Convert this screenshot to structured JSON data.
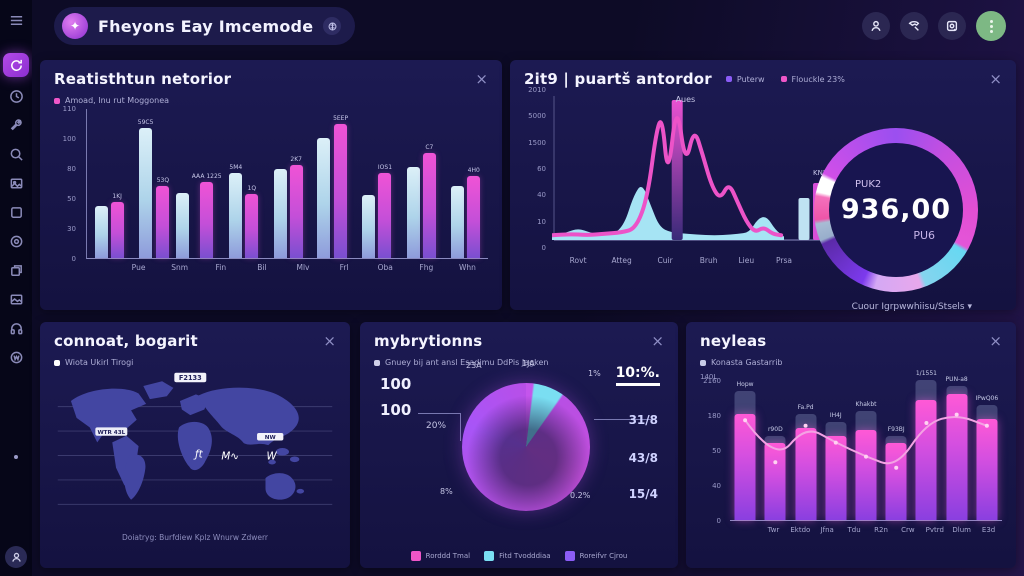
{
  "header": {
    "title": "Fheyons Eay Imcemode"
  },
  "panels": {
    "bars": {
      "title": "Reatisthtun netorior",
      "close": "×",
      "legend": [
        {
          "label": "Amoad, Inu rut Moggonea",
          "color": "#ef56c8"
        }
      ],
      "chart": {
        "type": "bar",
        "y_max": 110,
        "y_ticks": [
          "110",
          "100",
          "80",
          "50",
          "30",
          "0"
        ],
        "groups": [
          {
            "cat": "Pue",
            "cyan": 38,
            "pink": 41,
            "cyan_label": "",
            "pink_label": "1KJ"
          },
          {
            "cat": "Snm",
            "cyan": 95,
            "pink": 53,
            "cyan_label": "59C5",
            "pink_label": "53Q"
          },
          {
            "cat": "Fin",
            "cyan": 48,
            "pink": 56,
            "cyan_label": "",
            "pink_label": "AAA 1225"
          },
          {
            "cat": "Bil",
            "cyan": 62,
            "pink": 47,
            "cyan_label": "5M4",
            "pink_label": "1Q"
          },
          {
            "cat": "Mlv",
            "cyan": 65,
            "pink": 68,
            "cyan_label": "",
            "pink_label": "2K7"
          },
          {
            "cat": "Frl",
            "cyan": 88,
            "pink": 98,
            "cyan_label": "",
            "pink_label": "5EEP"
          },
          {
            "cat": "Oba",
            "cyan": 46,
            "pink": 62,
            "cyan_label": "",
            "pink_label": "IOS1"
          },
          {
            "cat": "Fhg",
            "cyan": 67,
            "pink": 77,
            "cyan_label": "",
            "pink_label": "C7"
          },
          {
            "cat": "Whn",
            "cyan": 53,
            "pink": 60,
            "cyan_label": "",
            "pink_label": "4H0"
          }
        ]
      }
    },
    "timeline": {
      "title": "2it9 | puartš antordor",
      "close": "×",
      "legend": [
        {
          "label": "Puterw",
          "color": "#8b5cf6"
        },
        {
          "label": "Flouckle 23%",
          "color": "#ef56c8"
        }
      ],
      "chart": {
        "type": "line-area",
        "annotation": "Aues",
        "bar_label": "KNI",
        "y_ticks": [
          "2010",
          "5000",
          "1500",
          "60",
          "40",
          "10",
          "0"
        ],
        "x_ticks": [
          "Rovt",
          "Atteg",
          "Cuir",
          "Bruh",
          "Lieu",
          "Prsa"
        ],
        "x_tick_pos": [
          9,
          24,
          39,
          54,
          67,
          80
        ],
        "line": [
          [
            0,
            2
          ],
          [
            6,
            3
          ],
          [
            12,
            2
          ],
          [
            18,
            3
          ],
          [
            24,
            4
          ],
          [
            29,
            7
          ],
          [
            33,
            30
          ],
          [
            36,
            78
          ],
          [
            38,
            88
          ],
          [
            40,
            42
          ],
          [
            43,
            100
          ],
          [
            46,
            52
          ],
          [
            49,
            80
          ],
          [
            52,
            60
          ],
          [
            55,
            38
          ],
          [
            58,
            28
          ],
          [
            61,
            40
          ],
          [
            64,
            26
          ],
          [
            67,
            12
          ],
          [
            70,
            4
          ],
          [
            73,
            8
          ],
          [
            76,
            3
          ],
          [
            79,
            2
          ]
        ],
        "area": [
          [
            0,
            1
          ],
          [
            5,
            4
          ],
          [
            9,
            7
          ],
          [
            13,
            4
          ],
          [
            17,
            2
          ],
          [
            21,
            2
          ],
          [
            25,
            10
          ],
          [
            28,
            30
          ],
          [
            31,
            40
          ],
          [
            34,
            24
          ],
          [
            37,
            8
          ],
          [
            41,
            4
          ],
          [
            47,
            3
          ],
          [
            53,
            2
          ],
          [
            59,
            2
          ],
          [
            64,
            3
          ],
          [
            68,
            4
          ],
          [
            71,
            14
          ],
          [
            74,
            16
          ],
          [
            77,
            6
          ],
          [
            80,
            1
          ]
        ],
        "vbar_x": 43,
        "right_bars": [
          {
            "x": 85,
            "h": 28,
            "color": "cyan"
          },
          {
            "x": 90,
            "h": 38,
            "color": "pink"
          }
        ]
      },
      "gauge": {
        "top_label": "PUK2",
        "value": "936,00",
        "bottom_label": "PU6",
        "dropdown": "Cuour Igrpwwhiisu/Stsels ▾",
        "stops": "from 0deg, #9b4ff0 0deg, #c44fe0 40deg, #e24fd4 90deg, #e455d8 118deg, #67d8f2 121deg, #85d4ee 158deg, #e8a8ec 162deg, #d4a8f4 195deg, #7c3aed 205deg, #5b2aa8 245deg, #98aecb 248deg, #a8bcd4 260deg, #ee55a8 263deg, #f470bc 280deg, #ffffff 283deg, #ffffff 294deg, #d04fe8 297deg, #9b4ff0 360deg"
      }
    },
    "map": {
      "title": "connoat, bogarit",
      "close": "×",
      "legend": [
        {
          "label": "Wiota Ukirl Tirogi",
          "color": "#ffffff"
        }
      ],
      "badge_top": "F2133",
      "badge_left": "WTR 43L",
      "badge_right": "NW",
      "caption": "Doiatryg: Burfdiew Kplz Wnurw Zdwerr"
    },
    "pie": {
      "title": "mybrytionns",
      "close": "×",
      "legend_line": "Gnuey bij ant ansl Esadimu DdPis Jagken",
      "left_stats": [
        "100",
        "100"
      ],
      "highlight_stat": "10:%.",
      "right_stats": [
        "31/8",
        "43/8",
        "15/4"
      ],
      "float_labels": [
        "23A",
        "1JA",
        "1%",
        "20%",
        "8%",
        "0.2%"
      ],
      "slices": "from 0deg, #c455ec 0deg 6deg, #7adef2 8deg 34deg, #b84fe4 36deg, #c44fdc 120deg, #b44fe0 200deg, #a855f7 290deg, #b84fe8 360deg",
      "legend": [
        {
          "label": "Rorddd Tmal",
          "color": "#ef56c8"
        },
        {
          "label": "Fitd Tvodddiaa",
          "color": "#7adef2"
        },
        {
          "label": "Roreifvr Cjrou",
          "color": "#8b5cf6"
        }
      ]
    },
    "bars2": {
      "title": "neyleas",
      "close": "×",
      "legend": [
        {
          "label": "Konasta Gastarrib",
          "color": "#c8cce8"
        }
      ],
      "y_axis_title": "140L",
      "chart": {
        "type": "bar+line",
        "y_ticks": [
          "2160",
          "180",
          "50",
          "40",
          "0"
        ],
        "groups": [
          {
            "cat": "Twr",
            "back": 92,
            "pink": 76,
            "label": "Hopw"
          },
          {
            "cat": "Ektdo",
            "back": 60,
            "pink": 55,
            "label": "r90D"
          },
          {
            "cat": "Jfna",
            "back": 76,
            "pink": 66,
            "label": "Fa.Pd"
          },
          {
            "cat": "Tdu",
            "back": 70,
            "pink": 60,
            "label": "IH4J"
          },
          {
            "cat": "R2n",
            "back": 78,
            "pink": 64,
            "label": "Khakbt"
          },
          {
            "cat": "Crw",
            "back": 60,
            "pink": 55,
            "label": "F93BJ"
          },
          {
            "cat": "Pvtrd",
            "back": 100,
            "pink": 86,
            "label": "1/1551"
          },
          {
            "cat": "Dlum",
            "back": 96,
            "pink": 90,
            "label": "PUN-a8"
          },
          {
            "cat": "E3d",
            "back": 82,
            "pink": 72,
            "label": "IPwQ06"
          }
        ],
        "line": [
          72,
          42,
          68,
          56,
          46,
          38,
          70,
          76,
          68
        ]
      }
    }
  }
}
